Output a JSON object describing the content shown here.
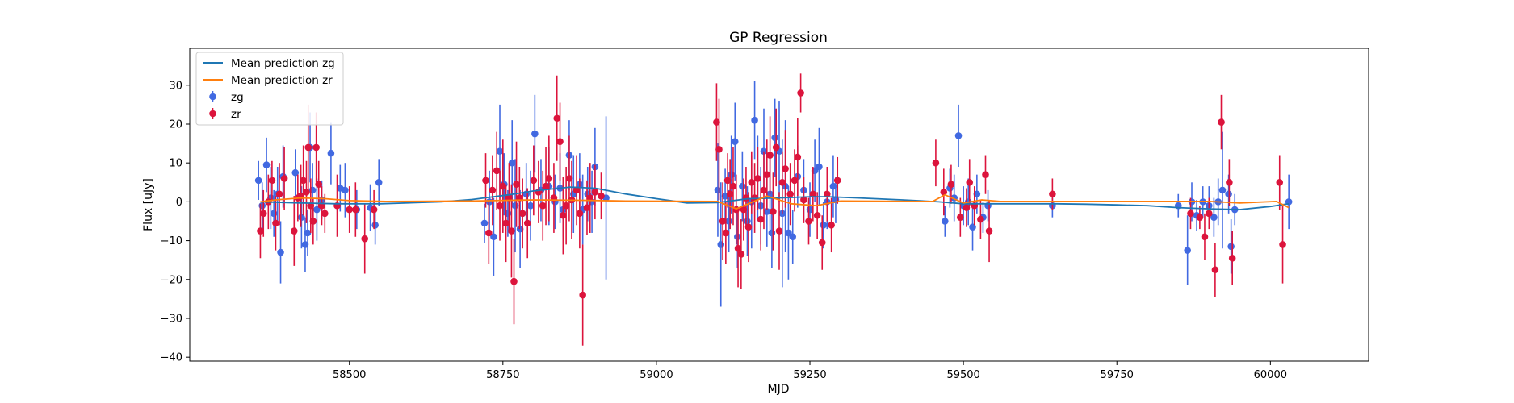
{
  "chart_data": {
    "type": "scatter",
    "title": "GP Regression",
    "xlabel": "MJD",
    "ylabel": "Flux [uJy]",
    "xlim": [
      58240,
      60160
    ],
    "ylim": [
      -41,
      39.5
    ],
    "xticks": [
      58500,
      58750,
      59000,
      59250,
      59500,
      59750,
      60000
    ],
    "yticks": [
      -40,
      -30,
      -20,
      -10,
      0,
      10,
      20,
      30
    ],
    "grid": false,
    "legend_position": "top-left",
    "legend": [
      "Mean prediction zg",
      "Mean prediction zr",
      "zg",
      "zr"
    ],
    "colors": {
      "zg_points": "#4169e1",
      "zr_points": "#dc143c",
      "zg_line": "#1f77b4",
      "zr_line": "#ff7f0e"
    },
    "series": [
      {
        "name": "Mean prediction zg",
        "kind": "line",
        "x": [
          58355,
          58420,
          58480,
          58550,
          58650,
          58700,
          58760,
          58800,
          58860,
          58900,
          58950,
          59000,
          59050,
          59100,
          59150,
          59200,
          59250,
          59280,
          59330,
          59400,
          59460,
          59500,
          59540,
          59600,
          59650,
          59700,
          59750,
          59800,
          59850,
          59900,
          59950,
          60000,
          60030
        ],
        "y": [
          0,
          -0.3,
          -0.5,
          -0.5,
          0,
          0.6,
          1.8,
          2.8,
          3.8,
          3.5,
          2.0,
          0.8,
          -0.3,
          -0.2,
          0.8,
          1.0,
          1.3,
          1.3,
          1.0,
          0.5,
          0,
          -0.5,
          -0.5,
          -0.5,
          -0.5,
          -0.6,
          -0.8,
          -1.0,
          -1.5,
          -1.8,
          -2.0,
          -1.2,
          -0.5
        ]
      },
      {
        "name": "Mean prediction zr",
        "kind": "line",
        "x": [
          58355,
          58380,
          58420,
          58460,
          58500,
          58560,
          58700,
          58760,
          58800,
          58880,
          58950,
          59100,
          59130,
          59180,
          59220,
          59260,
          59300,
          59450,
          59470,
          59500,
          59530,
          59560,
          59650,
          59850,
          59900,
          59950,
          60010,
          60030
        ],
        "y": [
          0,
          0.5,
          1.0,
          0.8,
          0.3,
          0.1,
          0.2,
          0.4,
          0.5,
          0.4,
          0.2,
          0.1,
          -1.8,
          1.5,
          -0.5,
          -1.0,
          0.2,
          0.1,
          1.8,
          -0.3,
          0.5,
          0.1,
          0.1,
          0.1,
          0.1,
          -0.3,
          0.1,
          -1.5
        ]
      },
      {
        "name": "zg",
        "kind": "errorbar",
        "points": [
          [
            58352,
            5.5,
            5
          ],
          [
            58358,
            -1,
            6
          ],
          [
            58365,
            9.5,
            7
          ],
          [
            58372,
            1,
            8
          ],
          [
            58377,
            -3,
            6
          ],
          [
            58383,
            2,
            7
          ],
          [
            58388,
            -13,
            8
          ],
          [
            58392,
            6.5,
            8
          ],
          [
            58412,
            7.5,
            6
          ],
          [
            58422,
            -4,
            8
          ],
          [
            58428,
            -11,
            7
          ],
          [
            58432,
            -8,
            6
          ],
          [
            58436,
            14,
            9
          ],
          [
            58440,
            3,
            7
          ],
          [
            58447,
            -2,
            8
          ],
          [
            58455,
            0.5,
            5
          ],
          [
            58470,
            12.5,
            8
          ],
          [
            58485,
            3.5,
            6
          ],
          [
            58493,
            3,
            7
          ],
          [
            58512,
            -2,
            5
          ],
          [
            58534,
            -1.5,
            6
          ],
          [
            58542,
            -6,
            5
          ],
          [
            58548,
            5,
            6
          ],
          [
            58720,
            -5.5,
            5
          ],
          [
            58728,
            0,
            8
          ],
          [
            58735,
            -9,
            10
          ],
          [
            58745,
            13,
            12
          ],
          [
            58752,
            4.5,
            8
          ],
          [
            58758,
            -3,
            6
          ],
          [
            58765,
            10,
            11
          ],
          [
            58770,
            -1,
            12
          ],
          [
            58778,
            -7,
            10
          ],
          [
            58788,
            2,
            8
          ],
          [
            58795,
            -1,
            9
          ],
          [
            58802,
            17.5,
            10
          ],
          [
            58812,
            3,
            8
          ],
          [
            58825,
            4,
            10
          ],
          [
            58835,
            0,
            7
          ],
          [
            58843,
            3.5,
            9
          ],
          [
            58848,
            -2,
            7
          ],
          [
            58858,
            12,
            9
          ],
          [
            58865,
            2,
            10
          ],
          [
            58875,
            4.5,
            8
          ],
          [
            58880,
            -2,
            9
          ],
          [
            58888,
            2,
            7
          ],
          [
            58895,
            0,
            8
          ],
          [
            58900,
            9,
            10
          ],
          [
            58918,
            1,
            21
          ],
          [
            59100,
            3,
            12
          ],
          [
            59105,
            -11,
            16
          ],
          [
            59112,
            1.5,
            7
          ],
          [
            59118,
            -5,
            8
          ],
          [
            59122,
            7,
            10
          ],
          [
            59128,
            15.5,
            10
          ],
          [
            59132,
            -9,
            8
          ],
          [
            59140,
            4,
            9
          ],
          [
            59148,
            -5,
            9
          ],
          [
            59155,
            0,
            12
          ],
          [
            59160,
            21,
            10
          ],
          [
            59165,
            6,
            11
          ],
          [
            59170,
            -1,
            10
          ],
          [
            59175,
            13,
            11
          ],
          [
            59180,
            -2.5,
            9
          ],
          [
            59185,
            2,
            10
          ],
          [
            59188,
            -8,
            9
          ],
          [
            59193,
            16.5,
            10
          ],
          [
            59200,
            13,
            13
          ],
          [
            59205,
            -3,
            19
          ],
          [
            59210,
            4,
            17
          ],
          [
            59215,
            -8,
            12
          ],
          [
            59222,
            -9,
            7
          ],
          [
            59230,
            6.5,
            8
          ],
          [
            59240,
            3,
            8
          ],
          [
            59250,
            -2,
            7
          ],
          [
            59258,
            8,
            8
          ],
          [
            59265,
            9,
            10
          ],
          [
            59272,
            -6,
            6
          ],
          [
            59278,
            0,
            7
          ],
          [
            59288,
            4,
            8
          ],
          [
            59292,
            0.5,
            6
          ],
          [
            59470,
            -5,
            4
          ],
          [
            59478,
            3.5,
            5
          ],
          [
            59485,
            1,
            6
          ],
          [
            59492,
            17,
            8
          ],
          [
            59500,
            -1,
            5
          ],
          [
            59508,
            0,
            6
          ],
          [
            59515,
            -6.5,
            6
          ],
          [
            59522,
            2,
            5
          ],
          [
            59532,
            -4,
            4
          ],
          [
            59540,
            -1,
            4
          ],
          [
            59645,
            -1,
            3
          ],
          [
            59850,
            -1,
            3
          ],
          [
            59865,
            -12.5,
            9
          ],
          [
            59872,
            0,
            5
          ],
          [
            59880,
            -3.5,
            4
          ],
          [
            59890,
            0,
            4
          ],
          [
            59900,
            -1,
            5
          ],
          [
            59908,
            -4,
            5
          ],
          [
            59915,
            0,
            6
          ],
          [
            59922,
            3,
            15
          ],
          [
            59932,
            2,
            5
          ],
          [
            59936,
            -11.5,
            7
          ],
          [
            59942,
            -2,
            4
          ],
          [
            60030,
            0,
            7
          ]
        ]
      },
      {
        "name": "zr",
        "kind": "errorbar",
        "points": [
          [
            58355,
            -7.5,
            7
          ],
          [
            58360,
            -3,
            6
          ],
          [
            58368,
            0,
            7
          ],
          [
            58374,
            5.5,
            5
          ],
          [
            58380,
            -5.5,
            7
          ],
          [
            58386,
            2,
            8
          ],
          [
            58394,
            6,
            8
          ],
          [
            58410,
            -7.5,
            9
          ],
          [
            58416,
            1,
            6
          ],
          [
            58421,
            1.5,
            8
          ],
          [
            58425,
            5.5,
            9
          ],
          [
            58430,
            2.5,
            8
          ],
          [
            58433,
            14,
            11
          ],
          [
            58437,
            -1,
            7
          ],
          [
            58441,
            -5,
            6
          ],
          [
            58446,
            14,
            9
          ],
          [
            58450,
            4.5,
            6
          ],
          [
            58455,
            -1,
            5
          ],
          [
            58460,
            -3,
            5
          ],
          [
            58480,
            -1,
            8
          ],
          [
            58500,
            -2,
            6
          ],
          [
            58510,
            -2,
            7
          ],
          [
            58525,
            -9.5,
            9
          ],
          [
            58540,
            -2,
            5
          ],
          [
            58722,
            5.5,
            7
          ],
          [
            58727,
            -8,
            8
          ],
          [
            58733,
            3,
            9
          ],
          [
            58740,
            8,
            10
          ],
          [
            58745,
            -1,
            9
          ],
          [
            58750,
            4,
            12
          ],
          [
            58755,
            -5.5,
            10
          ],
          [
            58760,
            1,
            9
          ],
          [
            58764,
            -7.5,
            12
          ],
          [
            58768,
            -20.5,
            11
          ],
          [
            58772,
            4.5,
            11
          ],
          [
            58777,
            1,
            8
          ],
          [
            58782,
            -3,
            9
          ],
          [
            58790,
            -5.5,
            9
          ],
          [
            58800,
            5.5,
            9
          ],
          [
            58808,
            2.5,
            8
          ],
          [
            58815,
            -1,
            9
          ],
          [
            58820,
            4,
            10
          ],
          [
            58825,
            6,
            11
          ],
          [
            58833,
            1,
            9
          ],
          [
            58838,
            21.5,
            11
          ],
          [
            58843,
            15.5,
            10
          ],
          [
            58848,
            -3.5,
            10
          ],
          [
            58853,
            -1,
            10
          ],
          [
            58858,
            6,
            11
          ],
          [
            58862,
            0.5,
            10
          ],
          [
            58870,
            3,
            9
          ],
          [
            58875,
            -3,
            9
          ],
          [
            58880,
            -24,
            13
          ],
          [
            58887,
            -1.5,
            7
          ],
          [
            58892,
            1,
            9
          ],
          [
            58900,
            2.5,
            7
          ],
          [
            58910,
            1.5,
            6
          ],
          [
            59098,
            20.5,
            10
          ],
          [
            59102,
            13.5,
            13
          ],
          [
            59108,
            -5,
            10
          ],
          [
            59113,
            -8,
            8
          ],
          [
            59116,
            5.5,
            7
          ],
          [
            59120,
            2,
            9
          ],
          [
            59125,
            4,
            10
          ],
          [
            59130,
            -2,
            9
          ],
          [
            59133,
            -12,
            10
          ],
          [
            59138,
            -13.5,
            9
          ],
          [
            59142,
            -2,
            8
          ],
          [
            59146,
            1,
            8
          ],
          [
            59150,
            -6.5,
            9
          ],
          [
            59155,
            5,
            8
          ],
          [
            59160,
            1,
            9
          ],
          [
            59165,
            6,
            8
          ],
          [
            59170,
            -4.5,
            8
          ],
          [
            59175,
            3,
            10
          ],
          [
            59180,
            7,
            9
          ],
          [
            59185,
            12,
            10
          ],
          [
            59190,
            -2.5,
            10
          ],
          [
            59195,
            14,
            10
          ],
          [
            59200,
            -7.5,
            10
          ],
          [
            59205,
            5,
            8
          ],
          [
            59210,
            8.5,
            10
          ],
          [
            59218,
            2,
            8
          ],
          [
            59225,
            5.5,
            8
          ],
          [
            59230,
            11.5,
            10
          ],
          [
            59235,
            28,
            5
          ],
          [
            59240,
            0.5,
            6
          ],
          [
            59248,
            -5,
            6
          ],
          [
            59255,
            2,
            7
          ],
          [
            59262,
            -3.5,
            6
          ],
          [
            59270,
            -10.5,
            7
          ],
          [
            59278,
            2,
            7
          ],
          [
            59285,
            -6,
            7
          ],
          [
            59295,
            5.5,
            6
          ],
          [
            59455,
            10,
            6
          ],
          [
            59468,
            2.5,
            6
          ],
          [
            59480,
            4.5,
            5
          ],
          [
            59495,
            -4,
            5
          ],
          [
            59505,
            -1.5,
            5
          ],
          [
            59510,
            5,
            6
          ],
          [
            59518,
            -1,
            5
          ],
          [
            59528,
            -4.5,
            5
          ],
          [
            59536,
            7,
            5
          ],
          [
            59542,
            -7.5,
            8
          ],
          [
            59645,
            2,
            4
          ],
          [
            59870,
            -3,
            4
          ],
          [
            59885,
            -4,
            3
          ],
          [
            59893,
            -9,
            6
          ],
          [
            59900,
            -3,
            4
          ],
          [
            59910,
            -17.5,
            7
          ],
          [
            59920,
            20.5,
            7
          ],
          [
            59933,
            5,
            6
          ],
          [
            59938,
            -14.5,
            7
          ],
          [
            60015,
            5,
            7
          ],
          [
            60020,
            -11,
            10
          ]
        ]
      }
    ]
  }
}
